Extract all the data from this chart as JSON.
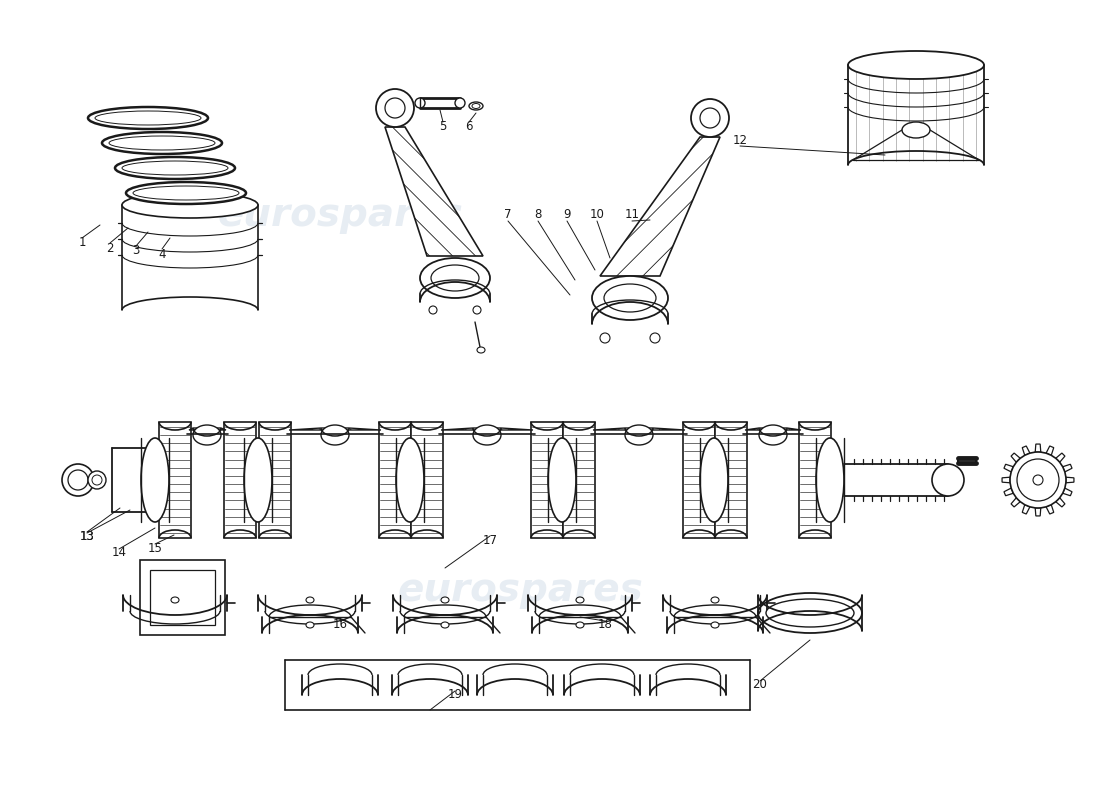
{
  "background_color": "#ffffff",
  "line_color": "#1a1a1a",
  "watermark_color": "#b0c4d8",
  "watermark_opacity": 0.3,
  "label_fontsize": 8.5,
  "fig_width": 11.0,
  "fig_height": 8.0,
  "dpi": 100
}
